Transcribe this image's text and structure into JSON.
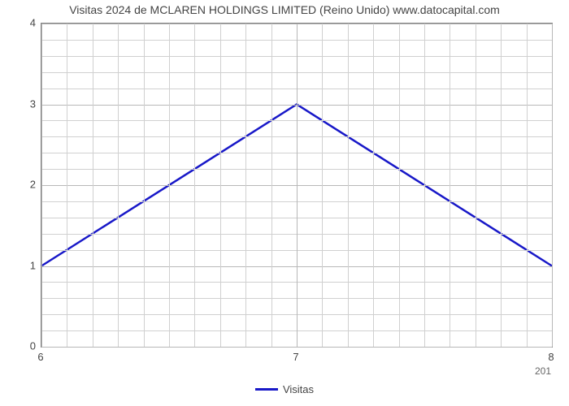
{
  "chart": {
    "type": "line",
    "title": "Visitas 2024 de MCLAREN HOLDINGS LIMITED (Reino Unido) www.datocapital.com",
    "title_fontsize": 14,
    "title_color": "#444444",
    "background_color": "#ffffff",
    "plot_border_color": "#808080",
    "grid_color": "#d0d0d0",
    "x": {
      "ticks": [
        6,
        7,
        8
      ],
      "labels": [
        "6",
        "7",
        "8"
      ],
      "min": 6,
      "max": 8,
      "minor_step": 0.1,
      "sublabel": "201",
      "sublabel_color": "#666666",
      "tick_fontsize": 13
    },
    "y": {
      "ticks": [
        0,
        1,
        2,
        3,
        4
      ],
      "labels": [
        "0",
        "1",
        "2",
        "3",
        "4"
      ],
      "min": 0,
      "max": 4,
      "minor_step": 0.2,
      "tick_fontsize": 13
    },
    "series": [
      {
        "name": "Visitas",
        "color": "#1818c8",
        "line_width": 2.5,
        "x": [
          6,
          7,
          8
        ],
        "y": [
          1,
          3,
          1
        ]
      }
    ],
    "legend": {
      "position": "bottom-center",
      "items": [
        {
          "label": "Visitas",
          "color": "#1818c8"
        }
      ]
    }
  }
}
